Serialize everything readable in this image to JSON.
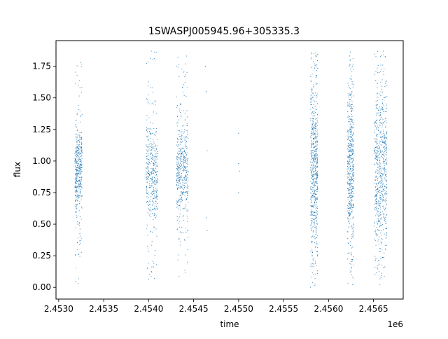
{
  "chart_data": {
    "type": "scatter",
    "title": "1SWASPJ005945.96+305335.3",
    "xlabel": "time",
    "ylabel": "flux",
    "x_offset_label": "1e6",
    "xlim": [
      2.45297,
      2.45683
    ],
    "ylim": [
      -0.093,
      1.953
    ],
    "x_ticks": [
      2.453,
      2.4535,
      2.454,
      2.4545,
      2.455,
      2.4555,
      2.456,
      2.4565
    ],
    "x_tick_labels": [
      "2.4530",
      "2.4535",
      "2.4540",
      "2.4545",
      "2.4550",
      "2.4555",
      "2.4560",
      "2.4565"
    ],
    "y_ticks": [
      0.0,
      0.25,
      0.5,
      0.75,
      1.0,
      1.25,
      1.5,
      1.75
    ],
    "y_tick_labels": [
      "0.00",
      "0.25",
      "0.50",
      "0.75",
      "1.00",
      "1.25",
      "1.50",
      "1.75"
    ],
    "grid": false,
    "marker_color": "#1f77b4",
    "marker": "point",
    "series": [
      {
        "observing_seasons": [
          {
            "x_start": 2.45318,
            "x_end": 2.45326,
            "y_min": 0.03,
            "y_max": 1.82,
            "core_min": 0.65,
            "core_max": 1.2,
            "points": 420
          },
          {
            "x_start": 2.45397,
            "x_end": 2.4541,
            "y_min": 0.04,
            "y_max": 1.88,
            "core_min": 0.62,
            "core_max": 1.22,
            "points": 420
          },
          {
            "x_start": 2.45431,
            "x_end": 2.45444,
            "y_min": 0.08,
            "y_max": 1.85,
            "core_min": 0.6,
            "core_max": 1.25,
            "points": 460
          },
          {
            "x_start": 2.4558,
            "x_end": 2.45588,
            "y_min": 0.0,
            "y_max": 1.86,
            "core_min": 0.4,
            "core_max": 1.5,
            "points": 620
          },
          {
            "x_start": 2.45621,
            "x_end": 2.45628,
            "y_min": 0.02,
            "y_max": 1.87,
            "core_min": 0.45,
            "core_max": 1.45,
            "points": 520
          },
          {
            "x_start": 2.45651,
            "x_end": 2.45665,
            "y_min": 0.02,
            "y_max": 1.87,
            "core_min": 0.4,
            "core_max": 1.45,
            "points": 660
          }
        ],
        "isolated_points": [
          {
            "x": 2.45463,
            "y": 1.75
          },
          {
            "x": 2.45464,
            "y": 1.55
          },
          {
            "x": 2.45465,
            "y": 1.08
          },
          {
            "x": 2.45464,
            "y": 0.55
          },
          {
            "x": 2.45465,
            "y": 0.45
          },
          {
            "x": 2.455,
            "y": 1.22
          },
          {
            "x": 2.455,
            "y": 0.98
          },
          {
            "x": 2.45501,
            "y": 0.92
          },
          {
            "x": 2.455,
            "y": 0.75
          }
        ]
      }
    ]
  }
}
